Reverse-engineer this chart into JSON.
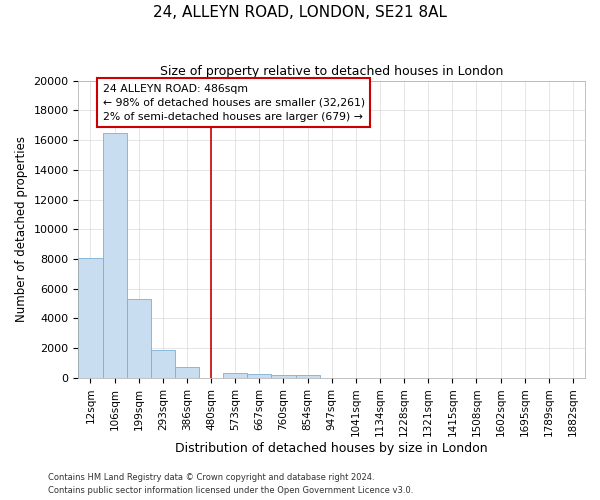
{
  "title": "24, ALLEYN ROAD, LONDON, SE21 8AL",
  "subtitle": "Size of property relative to detached houses in London",
  "xlabel": "Distribution of detached houses by size in London",
  "ylabel": "Number of detached properties",
  "categories": [
    "12sqm",
    "106sqm",
    "199sqm",
    "293sqm",
    "386sqm",
    "480sqm",
    "573sqm",
    "667sqm",
    "760sqm",
    "854sqm",
    "947sqm",
    "1041sqm",
    "1134sqm",
    "1228sqm",
    "1321sqm",
    "1415sqm",
    "1508sqm",
    "1602sqm",
    "1695sqm",
    "1789sqm",
    "1882sqm"
  ],
  "bar_heights": [
    8100,
    16500,
    5300,
    1850,
    750,
    0,
    350,
    280,
    230,
    170,
    0,
    0,
    0,
    0,
    0,
    0,
    0,
    0,
    0,
    0,
    0
  ],
  "bar_color": "#c8ddf0",
  "bar_edge_color": "#7bafd4",
  "vline_x": 5,
  "vline_color": "#cc0000",
  "ylim": [
    0,
    20000
  ],
  "yticks": [
    0,
    2000,
    4000,
    6000,
    8000,
    10000,
    12000,
    14000,
    16000,
    18000,
    20000
  ],
  "annotation_title": "24 ALLEYN ROAD: 486sqm",
  "annotation_line1": "← 98% of detached houses are smaller (32,261)",
  "annotation_line2": "2% of semi-detached houses are larger (679) →",
  "annotation_box_color": "#cc0000",
  "footnote1": "Contains HM Land Registry data © Crown copyright and database right 2024.",
  "footnote2": "Contains public sector information licensed under the Open Government Licence v3.0.",
  "plot_bg_color": "#ffffff",
  "fig_bg_color": "#ffffff",
  "grid_color": "#cccccc"
}
